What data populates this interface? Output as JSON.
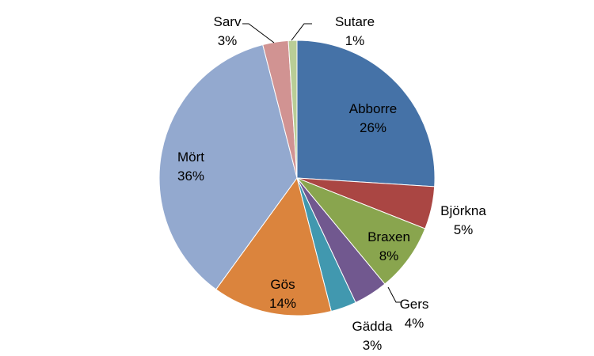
{
  "chart_data": {
    "type": "pie",
    "title": "",
    "start_angle_deg": 0,
    "direction": "clockwise",
    "legend": "none",
    "slices": [
      {
        "label": "Abborre",
        "value": 26,
        "value_label": "26%",
        "color": "#4572A7",
        "label_position": "inside"
      },
      {
        "label": "Björkna",
        "value": 5,
        "value_label": "5%",
        "color": "#AA4643",
        "label_position": "outside"
      },
      {
        "label": "Braxen",
        "value": 8,
        "value_label": "8%",
        "color": "#89A54E",
        "label_position": "inside"
      },
      {
        "label": "Gers",
        "value": 4,
        "value_label": "4%",
        "color": "#71588F",
        "label_position": "outside-leader"
      },
      {
        "label": "Gädda",
        "value": 3,
        "value_label": "3%",
        "color": "#4198AF",
        "label_position": "outside"
      },
      {
        "label": "Gös",
        "value": 14,
        "value_label": "14%",
        "color": "#DB843D",
        "label_position": "inside"
      },
      {
        "label": "Mört",
        "value": 36,
        "value_label": "36%",
        "color": "#93A9CF",
        "label_position": "inside"
      },
      {
        "label": "Sarv",
        "value": 3,
        "value_label": "3%",
        "color": "#D19392",
        "label_position": "outside-leader"
      },
      {
        "label": "Sutare",
        "value": 1,
        "value_label": "1%",
        "color": "#B9CD96",
        "label_position": "outside-leader"
      }
    ]
  }
}
